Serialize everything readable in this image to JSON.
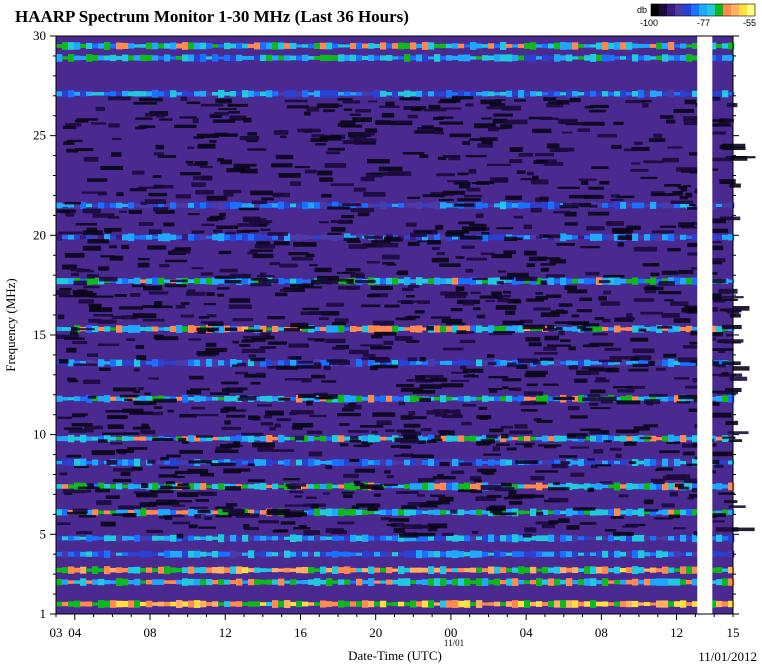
{
  "chart_data": {
    "type": "heatmap",
    "title": "HAARP Spectrum Monitor 1-30 MHz (Last 36 Hours)",
    "xlabel": "Date-Time (UTC)",
    "ylabel": "Frequency (MHz)",
    "date_label": "11/01/2012",
    "date_marker": "11/01",
    "ylim": [
      1,
      30
    ],
    "y_ticks": [
      1,
      5,
      10,
      15,
      20,
      25,
      30
    ],
    "x_ticks": [
      "03",
      "04",
      "08",
      "12",
      "16",
      "20",
      "00",
      "04",
      "08",
      "12",
      "15"
    ],
    "x_tick_hours": [
      3,
      4,
      8,
      12,
      16,
      20,
      24,
      28,
      32,
      36,
      39
    ],
    "data_gap_hours": [
      37.1,
      37.9
    ],
    "colorbar": {
      "unit": "db",
      "min_label": "-100",
      "mid_label": "-77",
      "max_label": "-55",
      "colors": [
        "#000000",
        "#1c0a3c",
        "#3a1a80",
        "#4a3aa8",
        "#2a40d0",
        "#1a70ff",
        "#20a8ff",
        "#20c8e0",
        "#10b820",
        "#ff8a50",
        "#ffb060",
        "#ffe040",
        "#ffff80"
      ]
    },
    "bands": [
      {
        "freq_mhz": 1.5,
        "intensity": 0.78
      },
      {
        "freq_mhz": 2.6,
        "intensity": 0.62
      },
      {
        "freq_mhz": 3.2,
        "intensity": 0.72
      },
      {
        "freq_mhz": 4.0,
        "intensity": 0.42
      },
      {
        "freq_mhz": 4.8,
        "intensity": 0.45
      },
      {
        "freq_mhz": 6.1,
        "intensity": 0.58
      },
      {
        "freq_mhz": 7.4,
        "intensity": 0.62
      },
      {
        "freq_mhz": 8.6,
        "intensity": 0.4
      },
      {
        "freq_mhz": 9.8,
        "intensity": 0.6
      },
      {
        "freq_mhz": 11.8,
        "intensity": 0.58
      },
      {
        "freq_mhz": 13.6,
        "intensity": 0.42
      },
      {
        "freq_mhz": 15.3,
        "intensity": 0.62
      },
      {
        "freq_mhz": 17.7,
        "intensity": 0.55
      },
      {
        "freq_mhz": 19.9,
        "intensity": 0.35
      },
      {
        "freq_mhz": 21.5,
        "intensity": 0.38
      },
      {
        "freq_mhz": 27.1,
        "intensity": 0.45
      },
      {
        "freq_mhz": 28.9,
        "intensity": 0.52
      },
      {
        "freq_mhz": 29.5,
        "intensity": 0.58
      }
    ]
  }
}
